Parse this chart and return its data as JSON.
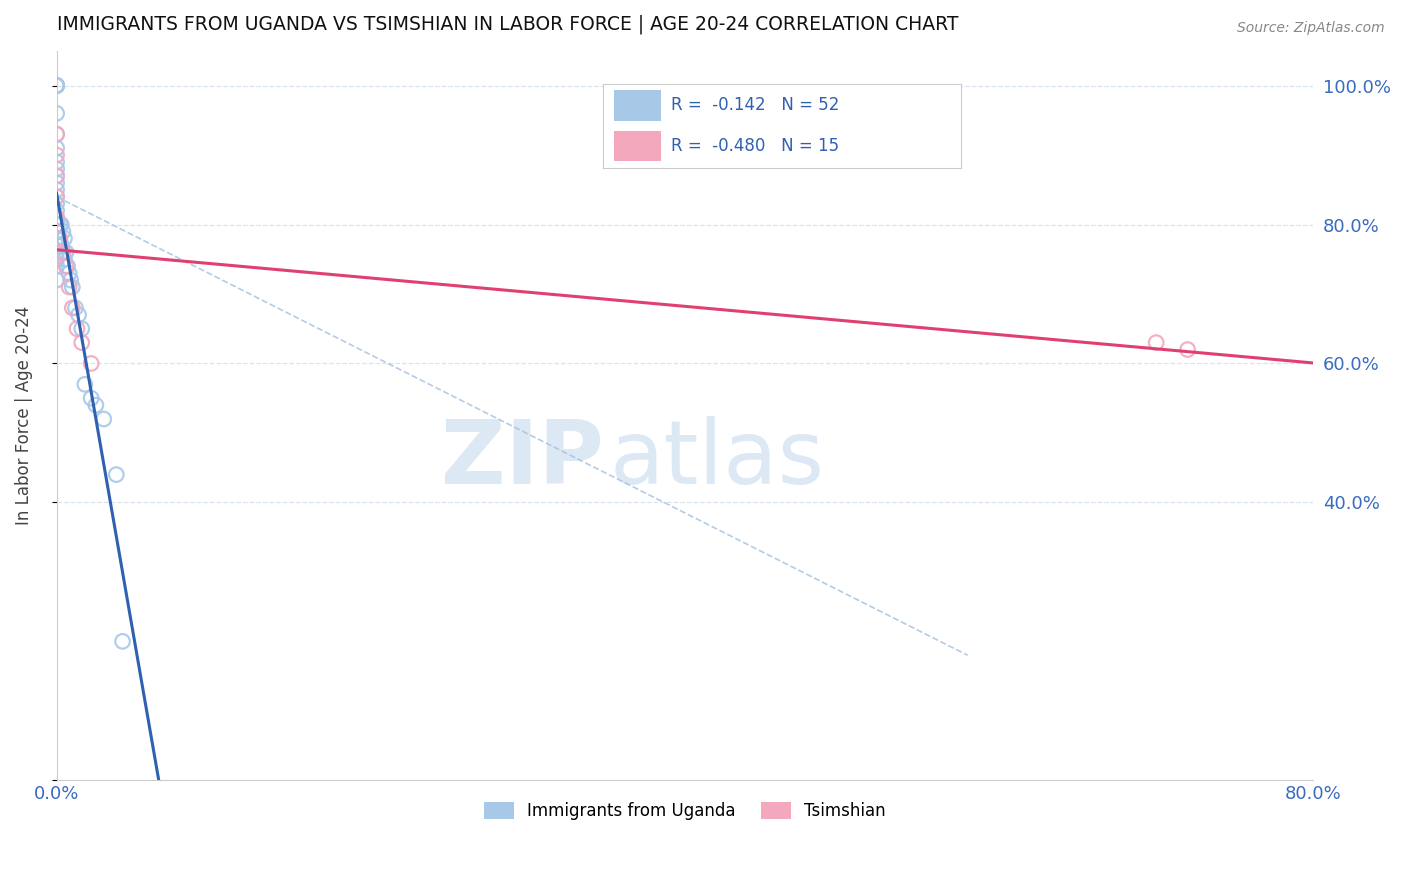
{
  "title": "IMMIGRANTS FROM UGANDA VS TSIMSHIAN IN LABOR FORCE | AGE 20-24 CORRELATION CHART",
  "source": "Source: ZipAtlas.com",
  "ylabel": "In Labor Force | Age 20-24",
  "xlim": [
    0.0,
    0.8
  ],
  "ylim": [
    0.0,
    1.05
  ],
  "uganda_x": [
    0.0,
    0.0,
    0.0,
    0.0,
    0.0,
    0.0,
    0.0,
    0.0,
    0.0,
    0.0,
    0.0,
    0.0,
    0.0,
    0.0,
    0.0,
    0.0,
    0.0,
    0.0,
    0.0,
    0.0,
    0.0,
    0.0,
    0.0,
    0.0,
    0.0,
    0.0,
    0.0,
    0.0,
    0.0,
    0.0,
    0.002,
    0.002,
    0.003,
    0.003,
    0.004,
    0.004,
    0.005,
    0.005,
    0.006,
    0.007,
    0.008,
    0.009,
    0.01,
    0.012,
    0.014,
    0.016,
    0.018,
    0.022,
    0.025,
    0.03,
    0.038,
    0.042
  ],
  "uganda_y": [
    1.0,
    1.0,
    1.0,
    1.0,
    1.0,
    0.96,
    0.93,
    0.91,
    0.89,
    0.88,
    0.87,
    0.86,
    0.85,
    0.84,
    0.83,
    0.82,
    0.81,
    0.8,
    0.8,
    0.8,
    0.8,
    0.79,
    0.79,
    0.78,
    0.78,
    0.77,
    0.76,
    0.75,
    0.74,
    0.72,
    0.8,
    0.78,
    0.8,
    0.77,
    0.79,
    0.76,
    0.78,
    0.75,
    0.76,
    0.74,
    0.73,
    0.72,
    0.71,
    0.68,
    0.67,
    0.65,
    0.57,
    0.55,
    0.54,
    0.52,
    0.44,
    0.2
  ],
  "tsimshian_x": [
    0.0,
    0.0,
    0.0,
    0.0,
    0.0,
    0.002,
    0.004,
    0.006,
    0.008,
    0.01,
    0.013,
    0.016,
    0.022,
    0.7,
    0.72
  ],
  "tsimshian_y": [
    0.93,
    0.9,
    0.87,
    0.84,
    0.81,
    0.78,
    0.76,
    0.74,
    0.71,
    0.68,
    0.65,
    0.63,
    0.6,
    0.63,
    0.62
  ],
  "uganda_color": "#a8c8e8",
  "tsimshian_color": "#f4a8be",
  "uganda_line_color": "#3060b0",
  "tsimshian_line_color": "#e04070",
  "dashed_line_color": "#a0c0e0",
  "uganda_line_x0": 0.0,
  "uganda_line_x1": 0.1,
  "tsimshian_line_x0": 0.0,
  "tsimshian_line_x1": 0.8,
  "watermark_zip": "ZIP",
  "watermark_atlas": "atlas",
  "background_color": "#ffffff",
  "grid_color": "#d8e4f0"
}
